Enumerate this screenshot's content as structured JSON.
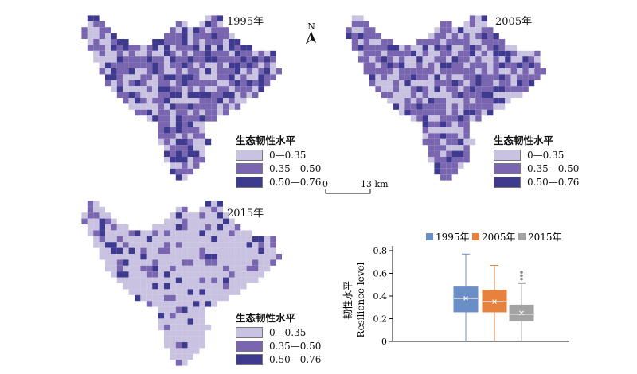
{
  "colors": {
    "low": "#c9c3e1",
    "mid": "#7a66b0",
    "high": "#3d3a8f"
  },
  "legend": {
    "title": "生态韧性水平",
    "classes": [
      {
        "label": "0—0.35",
        "color": "#c9c3e1"
      },
      {
        "label": "0.35—0.50",
        "color": "#7a66b0"
      },
      {
        "label": "0.50—0.76",
        "color": "#3d3a8f"
      }
    ]
  },
  "maps": [
    {
      "year": "1995年",
      "mix": [
        0.3,
        0.45,
        0.25
      ]
    },
    {
      "year": "2005年",
      "mix": [
        0.35,
        0.5,
        0.15
      ]
    },
    {
      "year": "2015年",
      "mix": [
        0.78,
        0.12,
        0.1
      ]
    }
  ],
  "north_label": "N",
  "scale_bar": {
    "start": "0",
    "end": "13 km"
  },
  "chart_data": {
    "type": "box",
    "ylabel_cn": "韧性水平",
    "ylabel_en": "Resilience level",
    "ylim": [
      0,
      0.8
    ],
    "yticks": [
      "0",
      "0.2",
      "0.4",
      "0.6",
      "0.8"
    ],
    "series": [
      {
        "name": "1995年",
        "color": "#6a8fc7",
        "min": 0.0,
        "q1": 0.26,
        "median": 0.38,
        "mean": 0.38,
        "q3": 0.48,
        "max": 0.77,
        "outliers": []
      },
      {
        "name": "2005年",
        "color": "#e6823e",
        "min": 0.0,
        "q1": 0.26,
        "median": 0.35,
        "mean": 0.35,
        "q3": 0.45,
        "max": 0.67,
        "outliers": []
      },
      {
        "name": "2015年",
        "color": "#a3a3a3",
        "min": 0.0,
        "q1": 0.18,
        "median": 0.24,
        "mean": 0.25,
        "q3": 0.32,
        "max": 0.51,
        "outliers": [
          0.55,
          0.58,
          0.61
        ]
      }
    ]
  }
}
